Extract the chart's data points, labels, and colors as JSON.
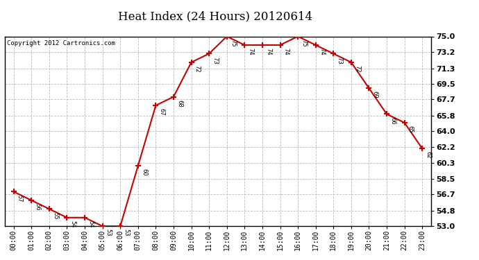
{
  "title": "Heat Index (24 Hours) 20120614",
  "copyright": "Copyright 2012 Cartronics.com",
  "hours": [
    0,
    1,
    2,
    3,
    4,
    5,
    6,
    7,
    8,
    9,
    10,
    11,
    12,
    13,
    14,
    15,
    16,
    17,
    18,
    19,
    20,
    21,
    22,
    23
  ],
  "x_labels": [
    "00:00",
    "01:00",
    "02:00",
    "03:00",
    "04:00",
    "05:00",
    "06:00",
    "07:00",
    "08:00",
    "09:00",
    "10:00",
    "11:00",
    "12:00",
    "13:00",
    "14:00",
    "15:00",
    "16:00",
    "17:00",
    "18:00",
    "19:00",
    "20:00",
    "21:00",
    "22:00",
    "23:00"
  ],
  "values": [
    57,
    56,
    55,
    54,
    54,
    53,
    53,
    60,
    67,
    68,
    72,
    73,
    75,
    74,
    74,
    74,
    75,
    74,
    73,
    72,
    69,
    66,
    65,
    62
  ],
  "ylim_min": 53.0,
  "ylim_max": 75.0,
  "yticks": [
    53.0,
    54.8,
    56.7,
    58.5,
    60.3,
    62.2,
    64.0,
    65.8,
    67.7,
    69.5,
    71.3,
    73.2,
    75.0
  ],
  "line_color": "#cc0000",
  "marker_color": "#cc0000",
  "bg_color": "#ffffff",
  "grid_color": "#bbbbbb",
  "title_fontsize": 12,
  "label_fontsize": 7,
  "annotation_fontsize": 6,
  "copyright_fontsize": 6.5
}
